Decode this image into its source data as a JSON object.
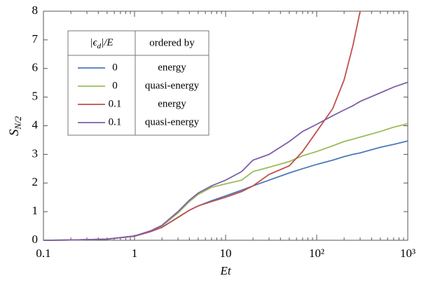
{
  "chart_data": {
    "type": "line",
    "xscale": "log",
    "x_label": "Et",
    "y_label": {
      "main": "S",
      "sub": "N/2"
    },
    "x": [
      0.1,
      0.2,
      0.5,
      1,
      1.5,
      2,
      3,
      4,
      5,
      7,
      10,
      15,
      20,
      30,
      50,
      70,
      100,
      150,
      200,
      250,
      300,
      500,
      700,
      1000
    ],
    "series": [
      {
        "eps": "0",
        "ordered_by": "energy",
        "color": "#4a7ab8",
        "values": [
          0,
          0.01,
          0.04,
          0.15,
          0.3,
          0.45,
          0.8,
          1.05,
          1.2,
          1.38,
          1.55,
          1.75,
          1.9,
          2.1,
          2.35,
          2.5,
          2.65,
          2.8,
          2.92,
          3.0,
          3.05,
          3.25,
          3.35,
          3.47
        ]
      },
      {
        "eps": "0",
        "ordered_by": "quasi-energy",
        "color": "#9bbb59",
        "values": [
          0,
          0.01,
          0.04,
          0.15,
          0.32,
          0.5,
          0.95,
          1.35,
          1.6,
          1.85,
          1.97,
          2.1,
          2.4,
          2.55,
          2.75,
          2.95,
          3.1,
          3.3,
          3.45,
          3.53,
          3.6,
          3.8,
          3.95,
          4.07
        ]
      },
      {
        "eps": "0.1",
        "ordered_by": "energy",
        "color": "#c0504d",
        "values": [
          0,
          0.01,
          0.04,
          0.14,
          0.3,
          0.45,
          0.8,
          1.05,
          1.2,
          1.35,
          1.5,
          1.7,
          1.9,
          2.3,
          2.6,
          3.1,
          3.8,
          4.6,
          5.6,
          6.8,
          8,
          null,
          null,
          null
        ]
      },
      {
        "eps": "0.1",
        "ordered_by": "quasi-energy",
        "color": "#7f5fa8",
        "values": [
          0,
          0.01,
          0.04,
          0.15,
          0.33,
          0.52,
          1.0,
          1.4,
          1.65,
          1.9,
          2.1,
          2.4,
          2.8,
          3.0,
          3.45,
          3.8,
          4.05,
          4.35,
          4.55,
          4.7,
          4.85,
          5.15,
          5.35,
          5.52
        ]
      }
    ],
    "legend": {
      "eps_header": {
        "a": "|ϵ",
        "sub": "d",
        "b": "|/E"
      },
      "ordered_header": "ordered by"
    },
    "xlim": [
      0.1,
      1000
    ],
    "xticks": [
      0.1,
      1,
      10,
      {
        "value": 100,
        "label": "10²"
      },
      {
        "value": 1000,
        "label": "10³"
      }
    ],
    "ylim": [
      0,
      8
    ],
    "yticks": [
      0,
      1,
      2,
      3,
      4,
      5,
      6,
      7,
      8
    ]
  }
}
